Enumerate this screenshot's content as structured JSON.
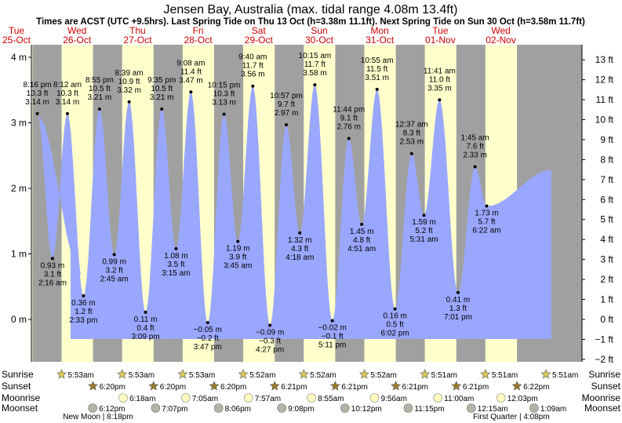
{
  "chart_data": {
    "type": "area",
    "title": "Jensen Bay, Australia (max. tidal range 4.08m 13.4ft)",
    "subtitle": "Times are ACST (UTC +9.5hrs). Last Spring Tide on Thu 13 Oct (h=3.38m 11.1ft). Next Spring Tide on Sun 30 Oct (h=3.58m 11.7ft)",
    "ylim_m": [
      -0.6,
      4.2
    ],
    "left_ticks": [
      {
        "value": 4,
        "label": "4 m"
      },
      {
        "value": 3,
        "label": "3 m"
      },
      {
        "value": 2,
        "label": "2 m"
      },
      {
        "value": 1,
        "label": "1 m"
      },
      {
        "value": 0,
        "label": "0 m"
      }
    ],
    "right_ticks": [
      {
        "label": "13 ft",
        "ft": 13
      },
      {
        "label": "12 ft",
        "ft": 12
      },
      {
        "label": "11 ft",
        "ft": 11
      },
      {
        "label": "10 ft",
        "ft": 10
      },
      {
        "label": "9 ft",
        "ft": 9
      },
      {
        "label": "8 ft",
        "ft": 8
      },
      {
        "label": "7 ft",
        "ft": 7
      },
      {
        "label": "6 ft",
        "ft": 6
      },
      {
        "label": "5 ft",
        "ft": 5
      },
      {
        "label": "4 ft",
        "ft": 4
      },
      {
        "label": "3 ft",
        "ft": 3
      },
      {
        "label": "2 ft",
        "ft": 2
      },
      {
        "label": "1 ft",
        "ft": 1
      },
      {
        "label": "0 ft",
        "ft": 0
      },
      {
        "label": "−1 ft",
        "ft": -1
      },
      {
        "label": "−2 ft",
        "ft": -2
      }
    ],
    "days": [
      {
        "dow": "Tue",
        "date": "25-Oct",
        "sunrise": "",
        "sunset": "",
        "sunrise_h": 5.883,
        "sunset_h": 18.333
      },
      {
        "dow": "Wed",
        "date": "26-Oct",
        "sunrise": "5:53am",
        "sunset": "6:20pm",
        "sunrise_h": 5.883,
        "sunset_h": 18.333
      },
      {
        "dow": "Thu",
        "date": "27-Oct",
        "sunrise": "5:53am",
        "sunset": "6:20pm",
        "sunrise_h": 5.883,
        "sunset_h": 18.333
      },
      {
        "dow": "Fri",
        "date": "28-Oct",
        "sunrise": "5:53am",
        "sunset": "6:20pm",
        "sunrise_h": 5.883,
        "sunset_h": 18.333
      },
      {
        "dow": "Sat",
        "date": "29-Oct",
        "sunrise": "5:52am",
        "sunset": "6:21pm",
        "sunrise_h": 5.867,
        "sunset_h": 18.35
      },
      {
        "dow": "Sun",
        "date": "30-Oct",
        "sunrise": "5:52am",
        "sunset": "6:21pm",
        "sunrise_h": 5.867,
        "sunset_h": 18.35
      },
      {
        "dow": "Mon",
        "date": "31-Oct",
        "sunrise": "5:52am",
        "sunset": "6:21pm",
        "sunrise_h": 5.867,
        "sunset_h": 18.35
      },
      {
        "dow": "Tue",
        "date": "01-Nov",
        "sunrise": "5:51am",
        "sunset": "6:21pm",
        "sunrise_h": 5.85,
        "sunset_h": 18.35
      },
      {
        "dow": "Wed",
        "date": "02-Nov",
        "sunrise": "5:51am",
        "sunset": "6:22pm",
        "sunrise_h": 5.85,
        "sunset_h": 18.367
      }
    ],
    "extra_sunrise": {
      "label": "5:51am",
      "day": 9,
      "hour": 5.85
    },
    "tides": [
      {
        "day": 0,
        "hour": 20.267,
        "time": "8:16 pm",
        "m": 3.14,
        "ft": "10.3 ft",
        "m_label": "3.14 m",
        "high": true
      },
      {
        "day": 1,
        "hour": 2.267,
        "time": "2:16 am",
        "m": 0.93,
        "ft": "3.1 ft",
        "m_label": "0.93 m",
        "high": false
      },
      {
        "day": 1,
        "hour": 8.2,
        "time": "8:12 am",
        "m": 3.14,
        "ft": "10.3 ft",
        "m_label": "3.14 m",
        "high": true
      },
      {
        "day": 1,
        "hour": 14.55,
        "time": "2:33 pm",
        "m": 0.36,
        "ft": "1.2 ft",
        "m_label": "0.36 m",
        "high": false
      },
      {
        "day": 1,
        "hour": 20.917,
        "time": "8:55 pm",
        "m": 3.21,
        "ft": "10.5 ft",
        "m_label": "3.21 m",
        "high": true
      },
      {
        "day": 2,
        "hour": 2.75,
        "time": "2:45 am",
        "m": 0.99,
        "ft": "3.2 ft",
        "m_label": "0.99 m",
        "high": false
      },
      {
        "day": 2,
        "hour": 8.65,
        "time": "8:39 am",
        "m": 3.32,
        "ft": "10.9 ft",
        "m_label": "3.32 m",
        "high": true
      },
      {
        "day": 2,
        "hour": 15.15,
        "time": "3:09 pm",
        "m": 0.11,
        "ft": "0.4 ft",
        "m_label": "0.11 m",
        "high": false
      },
      {
        "day": 2,
        "hour": 21.583,
        "time": "9:35 pm",
        "m": 3.21,
        "ft": "10.5 ft",
        "m_label": "3.21 m",
        "high": true
      },
      {
        "day": 3,
        "hour": 3.25,
        "time": "3:15 am",
        "m": 1.08,
        "ft": "3.5 ft",
        "m_label": "1.08 m",
        "high": false
      },
      {
        "day": 3,
        "hour": 9.133,
        "time": "9:08 am",
        "m": 3.47,
        "ft": "11.4 ft",
        "m_label": "3.47 m",
        "high": true
      },
      {
        "day": 3,
        "hour": 15.783,
        "time": "3:47 pm",
        "m": -0.05,
        "ft": "−0.2 ft",
        "m_label": "−0.05 m",
        "high": false
      },
      {
        "day": 3,
        "hour": 22.25,
        "time": "10:15 pm",
        "m": 3.13,
        "ft": "10.3 ft",
        "m_label": "3.13 m",
        "high": true
      },
      {
        "day": 4,
        "hour": 3.75,
        "time": "3:45 am",
        "m": 1.19,
        "ft": "3.9 ft",
        "m_label": "1.19 m",
        "high": false
      },
      {
        "day": 4,
        "hour": 9.667,
        "time": "9:40 am",
        "m": 3.56,
        "ft": "11.7 ft",
        "m_label": "3.56 m",
        "high": true
      },
      {
        "day": 4,
        "hour": 16.45,
        "time": "4:27 pm",
        "m": -0.09,
        "ft": "−0.3 ft",
        "m_label": "−0.09 m",
        "high": false
      },
      {
        "day": 4,
        "hour": 22.95,
        "time": "10:57 pm",
        "m": 2.97,
        "ft": "9.7 ft",
        "m_label": "2.97 m",
        "high": true
      },
      {
        "day": 5,
        "hour": 4.3,
        "time": "4:18 am",
        "m": 1.32,
        "ft": "4.3 ft",
        "m_label": "1.32 m",
        "high": false
      },
      {
        "day": 5,
        "hour": 10.25,
        "time": "10:15 am",
        "m": 3.58,
        "ft": "11.7 ft",
        "m_label": "3.58 m",
        "high": true
      },
      {
        "day": 5,
        "hour": 17.183,
        "time": "5:11 pm",
        "m": -0.02,
        "ft": "−0.1 ft",
        "m_label": "−0.02 m",
        "high": false
      },
      {
        "day": 5,
        "hour": 23.733,
        "time": "11:44 pm",
        "m": 2.76,
        "ft": "9.1 ft",
        "m_label": "2.76 m",
        "high": true
      },
      {
        "day": 6,
        "hour": 4.85,
        "time": "4:51 am",
        "m": 1.45,
        "ft": "4.8 ft",
        "m_label": "1.45 m",
        "high": false
      },
      {
        "day": 6,
        "hour": 10.917,
        "time": "10:55 am",
        "m": 3.51,
        "ft": "11.5 ft",
        "m_label": "3.51 m",
        "high": true
      },
      {
        "day": 6,
        "hour": 18.033,
        "time": "6:02 pm",
        "m": 0.16,
        "ft": "0.5 ft",
        "m_label": "0.16 m",
        "high": false
      },
      {
        "day": 7,
        "hour": 0.617,
        "time": "12:37 am",
        "m": 2.53,
        "ft": "8.3 ft",
        "m_label": "2.53 m",
        "high": true
      },
      {
        "day": 7,
        "hour": 5.517,
        "time": "5:31 am",
        "m": 1.59,
        "ft": "5.2 ft",
        "m_label": "1.59 m",
        "high": false
      },
      {
        "day": 7,
        "hour": 11.683,
        "time": "11:41 am",
        "m": 3.35,
        "ft": "11.0 ft",
        "m_label": "3.35 m",
        "high": true
      },
      {
        "day": 7,
        "hour": 19.017,
        "time": "7:01 pm",
        "m": 0.41,
        "ft": "1.3 ft",
        "m_label": "0.41 m",
        "high": false
      },
      {
        "day": 8,
        "hour": 1.75,
        "time": "1:45 am",
        "m": 2.33,
        "ft": "7.6 ft",
        "m_label": "2.33 m",
        "high": true
      },
      {
        "day": 8,
        "hour": 6.367,
        "time": "6:22 am",
        "m": 1.73,
        "ft": "5.7 ft",
        "m_label": "1.73 m",
        "high": false
      }
    ],
    "moonrise": [
      {
        "label": "6:18am",
        "day": 2,
        "hour": 6.3
      },
      {
        "label": "7:05am",
        "day": 3,
        "hour": 7.083
      },
      {
        "label": "7:57am",
        "day": 4,
        "hour": 7.95
      },
      {
        "label": "8:55am",
        "day": 5,
        "hour": 8.917
      },
      {
        "label": "9:56am",
        "day": 6,
        "hour": 9.933
      },
      {
        "label": "11:00am",
        "day": 7,
        "hour": 11.0
      },
      {
        "label": "12:03pm",
        "day": 8,
        "hour": 12.05
      }
    ],
    "moonset": [
      {
        "label": "6:12pm",
        "day": 1,
        "hour": 18.2
      },
      {
        "label": "7:07pm",
        "day": 2,
        "hour": 19.117
      },
      {
        "label": "8:06pm",
        "day": 3,
        "hour": 20.1
      },
      {
        "label": "9:08pm",
        "day": 4,
        "hour": 21.133
      },
      {
        "label": "10:12pm",
        "day": 5,
        "hour": 22.2
      },
      {
        "label": "11:15pm",
        "day": 6,
        "hour": 23.25
      },
      {
        "label": "12:15am",
        "day": 8,
        "hour": 0.25
      },
      {
        "label": "1:09am",
        "day": 9,
        "hour": 1.15
      }
    ],
    "moon_phases": [
      {
        "label": "New Moon | 8:18pm",
        "day": 1,
        "hour": 20.3
      },
      {
        "label": "First Quarter | 4:08pm",
        "day": 8,
        "hour": 16.133
      }
    ],
    "row_labels": {
      "sunrise": "Sunrise",
      "sunset": "Sunset",
      "moonrise": "Moonrise",
      "moonset": "Moonset"
    },
    "colors": {
      "day": "#ffffcc",
      "night": "#a0a0a0",
      "water": "#9aa7ff",
      "date": "#cc0000",
      "star_rise": "#dcc85a",
      "star_set": "#9a7b2a",
      "moonrise": "#fffabe",
      "moonset": "#b4b4a6"
    }
  }
}
